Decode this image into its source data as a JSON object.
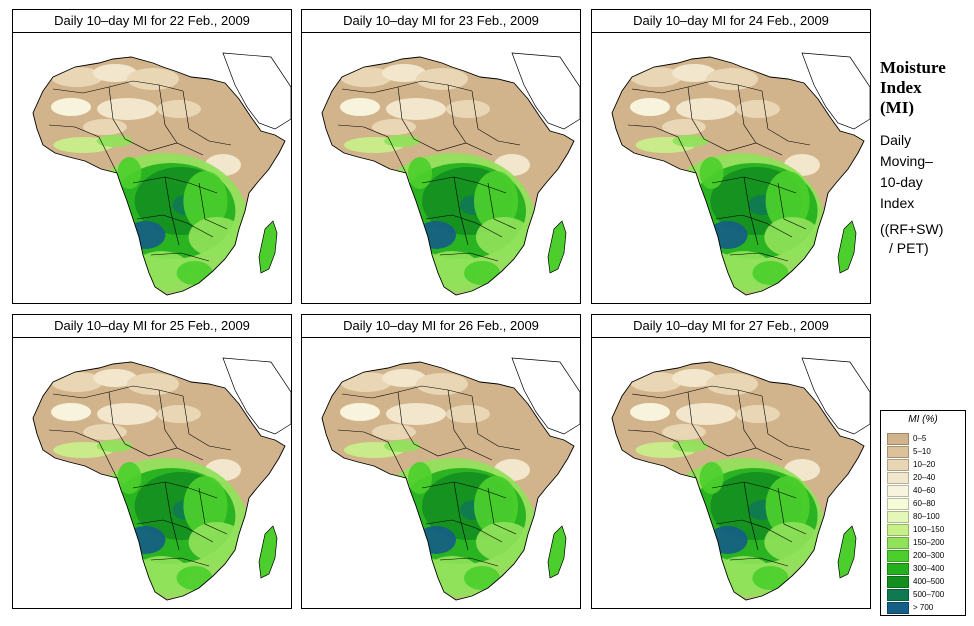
{
  "panels": [
    {
      "title": "Daily 10–day MI for  22 Feb., 2009"
    },
    {
      "title": "Daily 10–day MI for  23 Feb., 2009"
    },
    {
      "title": "Daily 10–day MI for  24 Feb., 2009"
    },
    {
      "title": "Daily 10–day MI for  25 Feb., 2009"
    },
    {
      "title": "Daily 10–day MI for  26 Feb., 2009"
    },
    {
      "title": "Daily 10–day MI for  27 Feb., 2009"
    }
  ],
  "sidebar": {
    "title_line1": "Moisture",
    "title_line2": "Index",
    "title_line3": "(MI)",
    "sub_line1": "Daily",
    "sub_line2": "Moving–",
    "sub_line3": "10-day",
    "sub_line4": "Index",
    "formula_line1": "((RF+SW)",
    "formula_line2": "/ PET)"
  },
  "legend": {
    "title": "MI (%)",
    "classes": [
      {
        "label": "0–5",
        "color": "#d2b48c"
      },
      {
        "label": "5–10",
        "color": "#dcc29a"
      },
      {
        "label": "10–20",
        "color": "#e8d6b4"
      },
      {
        "label": "20–40",
        "color": "#f2e6cc"
      },
      {
        "label": "40–60",
        "color": "#f8f3dc"
      },
      {
        "label": "60–80",
        "color": "#f6fbd8"
      },
      {
        "label": "80–100",
        "color": "#e4f7b8"
      },
      {
        "label": "100–150",
        "color": "#c8f08a"
      },
      {
        "label": "150–200",
        "color": "#8fe25a"
      },
      {
        "label": "200–300",
        "color": "#4ccf2c"
      },
      {
        "label": "300–400",
        "color": "#22b01c"
      },
      {
        "label": "400–500",
        "color": "#138f20"
      },
      {
        "label": "500–700",
        "color": "#0f7a52"
      },
      {
        "label": "> 700",
        "color": "#155e86"
      }
    ]
  }
}
